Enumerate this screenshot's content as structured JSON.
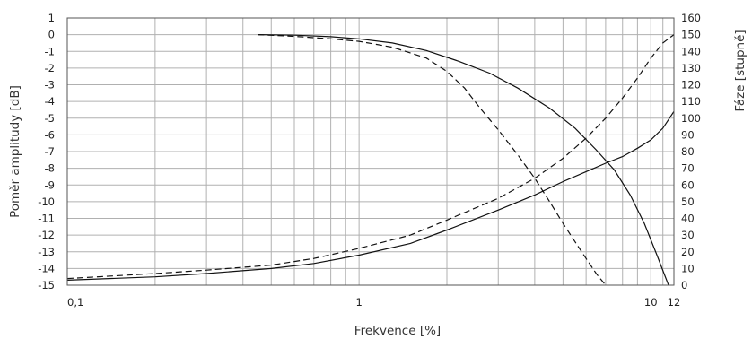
{
  "chart_data": {
    "type": "line",
    "title": "",
    "xlabel": "Frekvence [%]",
    "ylabel_left": "Poměr amplitudy [dB]",
    "ylabel_right": "Fáze [stupně]",
    "x_scale": "log",
    "xlim": [
      0.1,
      12
    ],
    "x_tick_labels": [
      {
        "value": 0.1,
        "label": "0,1"
      },
      {
        "value": 1,
        "label": "1"
      },
      {
        "value": 10,
        "label": "10"
      },
      {
        "value": 12,
        "label": "12"
      }
    ],
    "ylim_left": [
      -15,
      1
    ],
    "y_left_ticks": [
      "1",
      "0",
      "-1",
      "-2",
      "-3",
      "-4",
      "-5",
      "-6",
      "-7",
      "-8",
      "-9",
      "-10",
      "-11",
      "-12",
      "-13",
      "-14",
      "-15"
    ],
    "ylim_right": [
      0,
      160
    ],
    "y_right_ticks": [
      "160",
      "150",
      "140",
      "130",
      "120",
      "110",
      "100",
      "90",
      "80",
      "70",
      "60",
      "50",
      "40",
      "30",
      "20",
      "10",
      "0"
    ],
    "grid": true,
    "series": [
      {
        "axis": "left",
        "style": "solid",
        "x": [
          0.45,
          0.6,
          0.8,
          1.0,
          1.3,
          1.7,
          2.2,
          2.8,
          3.5,
          4.5,
          5.5,
          6.5,
          7.5,
          8.5,
          9.5,
          10.5,
          11.5
        ],
        "y": [
          0,
          -0.03,
          -0.12,
          -0.25,
          -0.5,
          -0.95,
          -1.6,
          -2.3,
          -3.2,
          -4.4,
          -5.6,
          -6.9,
          -8.1,
          -9.6,
          -11.3,
          -13.2,
          -15
        ]
      },
      {
        "axis": "left",
        "style": "dashed",
        "x": [
          0.45,
          0.6,
          0.8,
          1.0,
          1.3,
          1.7,
          2.0,
          2.3,
          2.6,
          3.0,
          3.5,
          4.0,
          4.5,
          5.0,
          5.5,
          6.0,
          6.5,
          7.0
        ],
        "y": [
          0,
          -0.1,
          -0.25,
          -0.4,
          -0.75,
          -1.4,
          -2.2,
          -3.2,
          -4.4,
          -5.7,
          -7.2,
          -8.6,
          -10.0,
          -11.3,
          -12.4,
          -13.4,
          -14.3,
          -15
        ]
      },
      {
        "axis": "right",
        "style": "solid",
        "x": [
          0.1,
          0.2,
          0.3,
          0.5,
          0.7,
          1.0,
          1.5,
          2.0,
          3.0,
          4.0,
          5.0,
          6.0,
          7.0,
          8.0,
          9.0,
          10.0,
          11.0,
          12.0,
          13.0,
          14.0
        ],
        "y": [
          3,
          5,
          7,
          10,
          13,
          18,
          25,
          33,
          45,
          54,
          62,
          68,
          73,
          77,
          82,
          87,
          94,
          104,
          118,
          130
        ]
      },
      {
        "axis": "right",
        "style": "dashed",
        "x": [
          0.1,
          0.2,
          0.3,
          0.5,
          0.7,
          1.0,
          1.5,
          2.0,
          3.0,
          4.0,
          5.0,
          6.0,
          7.0,
          8.0,
          9.0,
          10.0,
          11.0,
          12.0
        ],
        "y": [
          4,
          7,
          9,
          12,
          16,
          22,
          30,
          39,
          52,
          64,
          76,
          88,
          100,
          112,
          124,
          136,
          145,
          150
        ]
      }
    ]
  }
}
